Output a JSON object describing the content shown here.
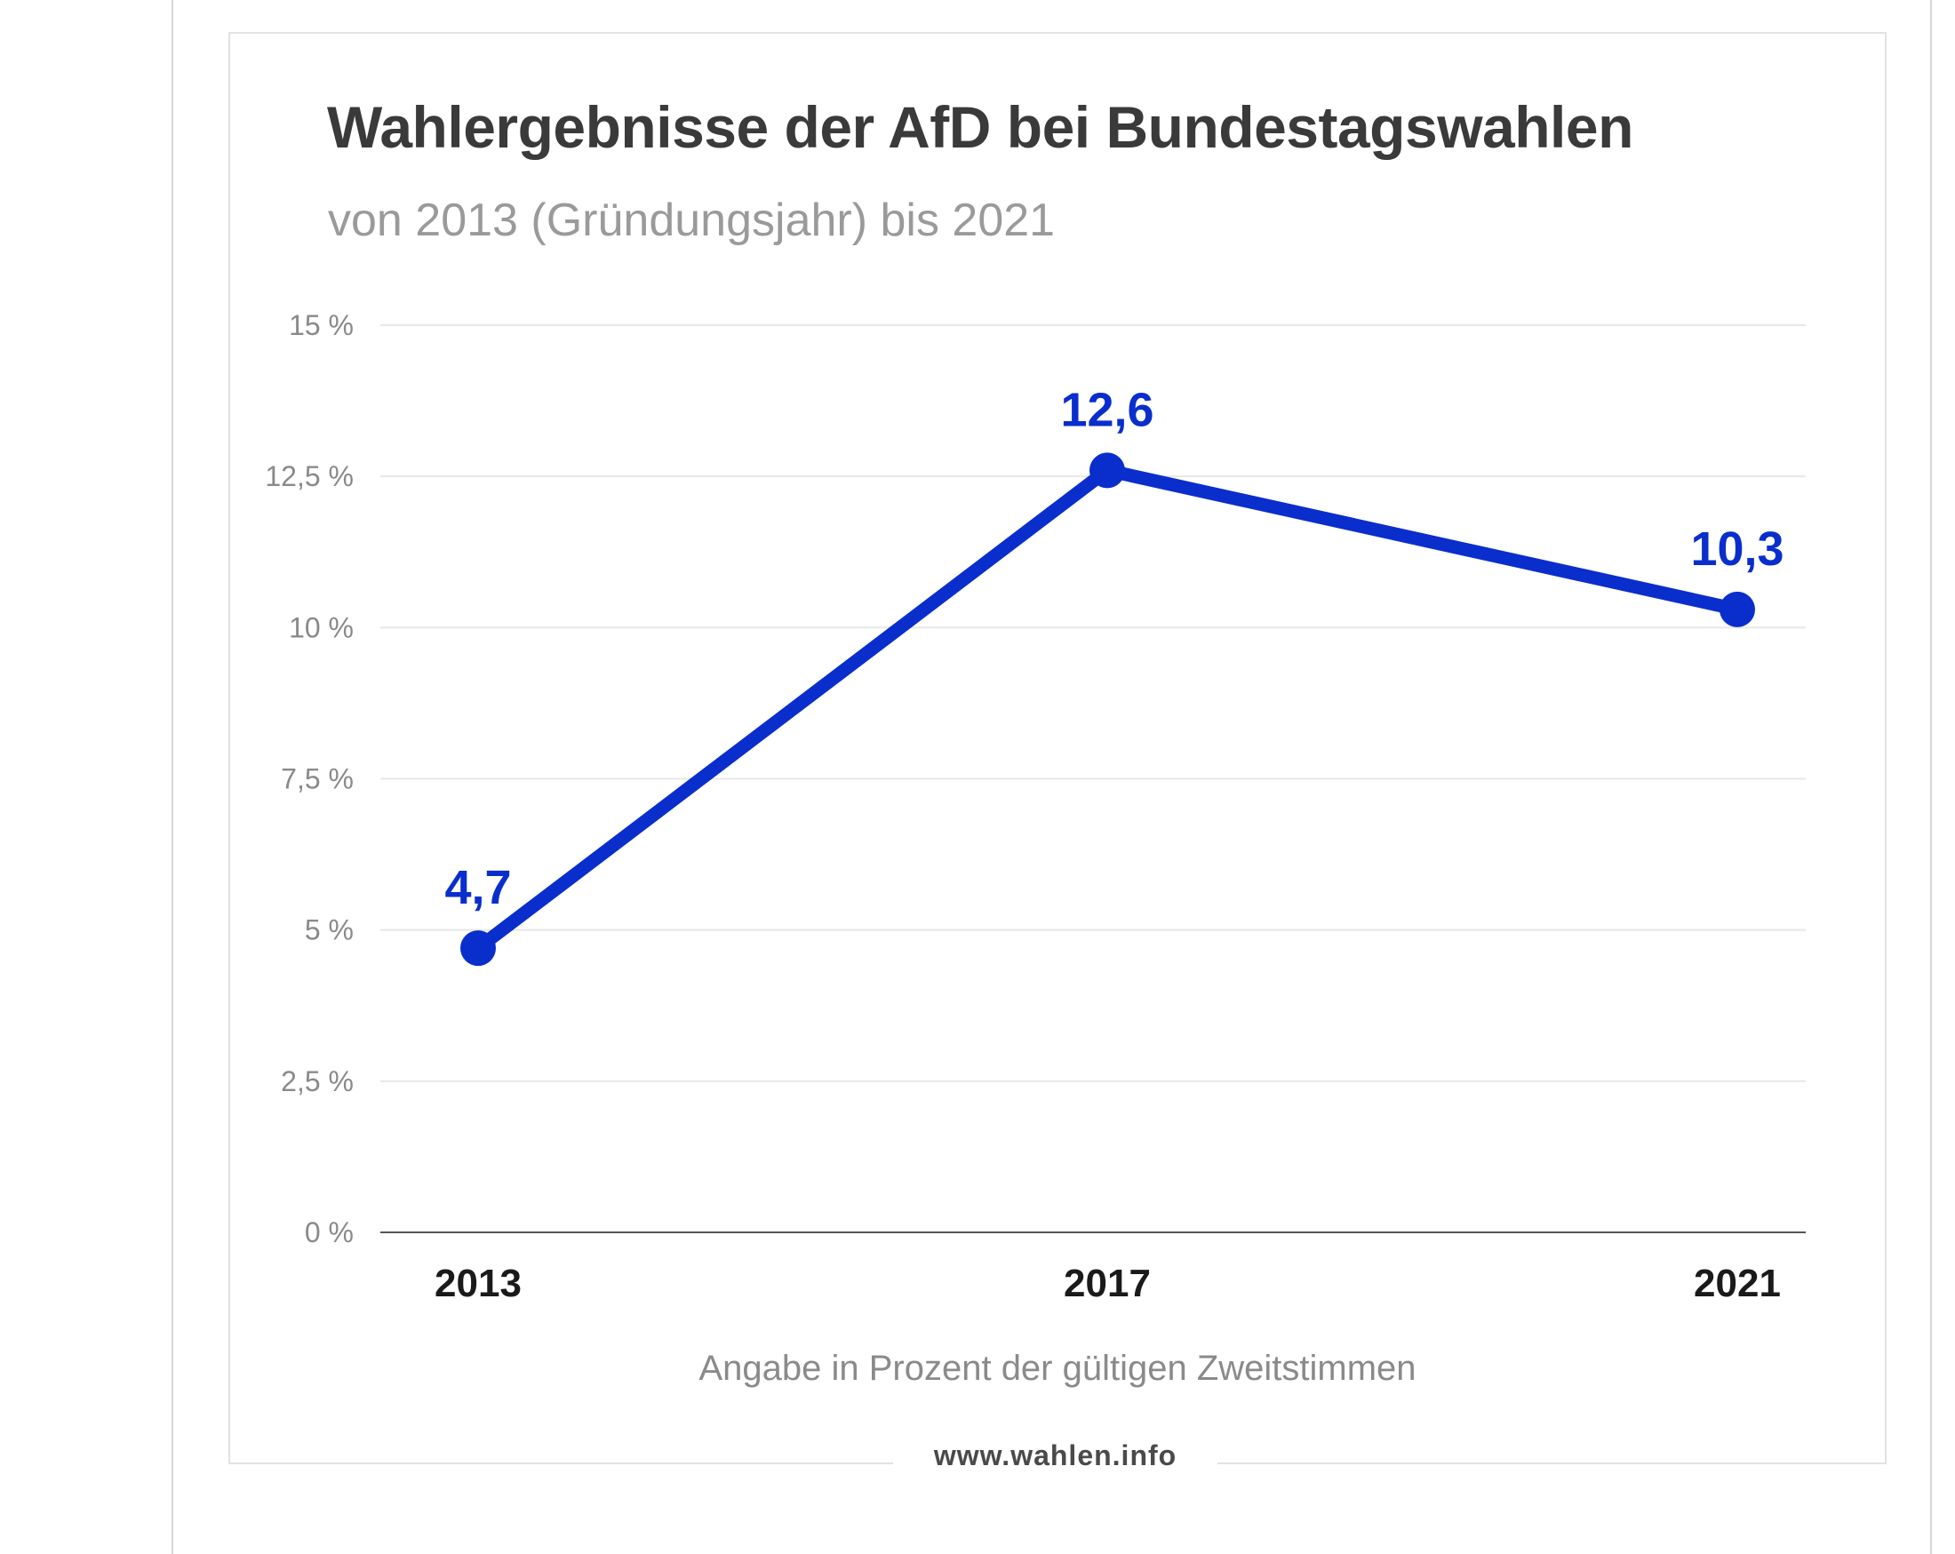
{
  "chart_data": {
    "type": "line",
    "title": "Wahlergebnisse der AfD bei Bundestagswahlen",
    "subtitle": "von 2013 (Gründungsjahr) bis 2021",
    "xlabel": "Angabe in Prozent der gültigen Zweitstimmen",
    "ylabel": "",
    "categories": [
      "2013",
      "2017",
      "2021"
    ],
    "series": [
      {
        "name": "",
        "values": [
          4.7,
          12.6,
          10.3
        ],
        "value_labels": [
          "4,7",
          "12,6",
          "10,3"
        ],
        "color": "#0a2ecc"
      }
    ],
    "ylim": [
      0,
      15
    ],
    "yticks": [
      0,
      2.5,
      5,
      7.5,
      10,
      12.5,
      15
    ],
    "ytick_labels": [
      "0 %",
      "2,5 %",
      "5 %",
      "7,5 %",
      "10 %",
      "12,5 %",
      "15 %"
    ],
    "grid": true,
    "legend": "none"
  },
  "source": "www.wahlen.info",
  "colors": {
    "line": "#0a2ecc",
    "grid": "#e8e8e8",
    "axis": "#555555",
    "title": "#3a3a3a",
    "subtitle": "#9a9a9a"
  }
}
